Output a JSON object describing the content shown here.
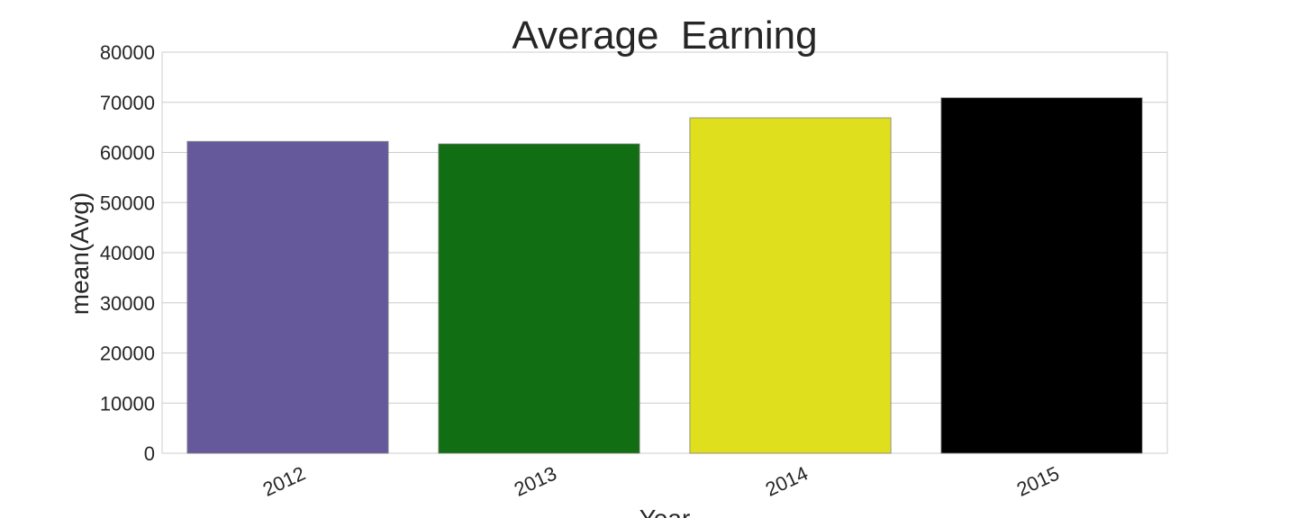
{
  "chart_data": {
    "type": "bar",
    "title": "Average  Earning",
    "xlabel": "Year",
    "ylabel": "mean(Avg)",
    "categories": [
      "2012",
      "2013",
      "2014",
      "2015"
    ],
    "values": [
      62200,
      61700,
      66900,
      70900
    ],
    "colors": [
      "#66599b",
      "#116e12",
      "#dfdf1e",
      "#000000"
    ],
    "ylim": [
      0,
      80000
    ],
    "yticks": [
      "0",
      "10000",
      "20000",
      "30000",
      "40000",
      "50000",
      "60000",
      "70000",
      "80000"
    ],
    "grid": true
  }
}
